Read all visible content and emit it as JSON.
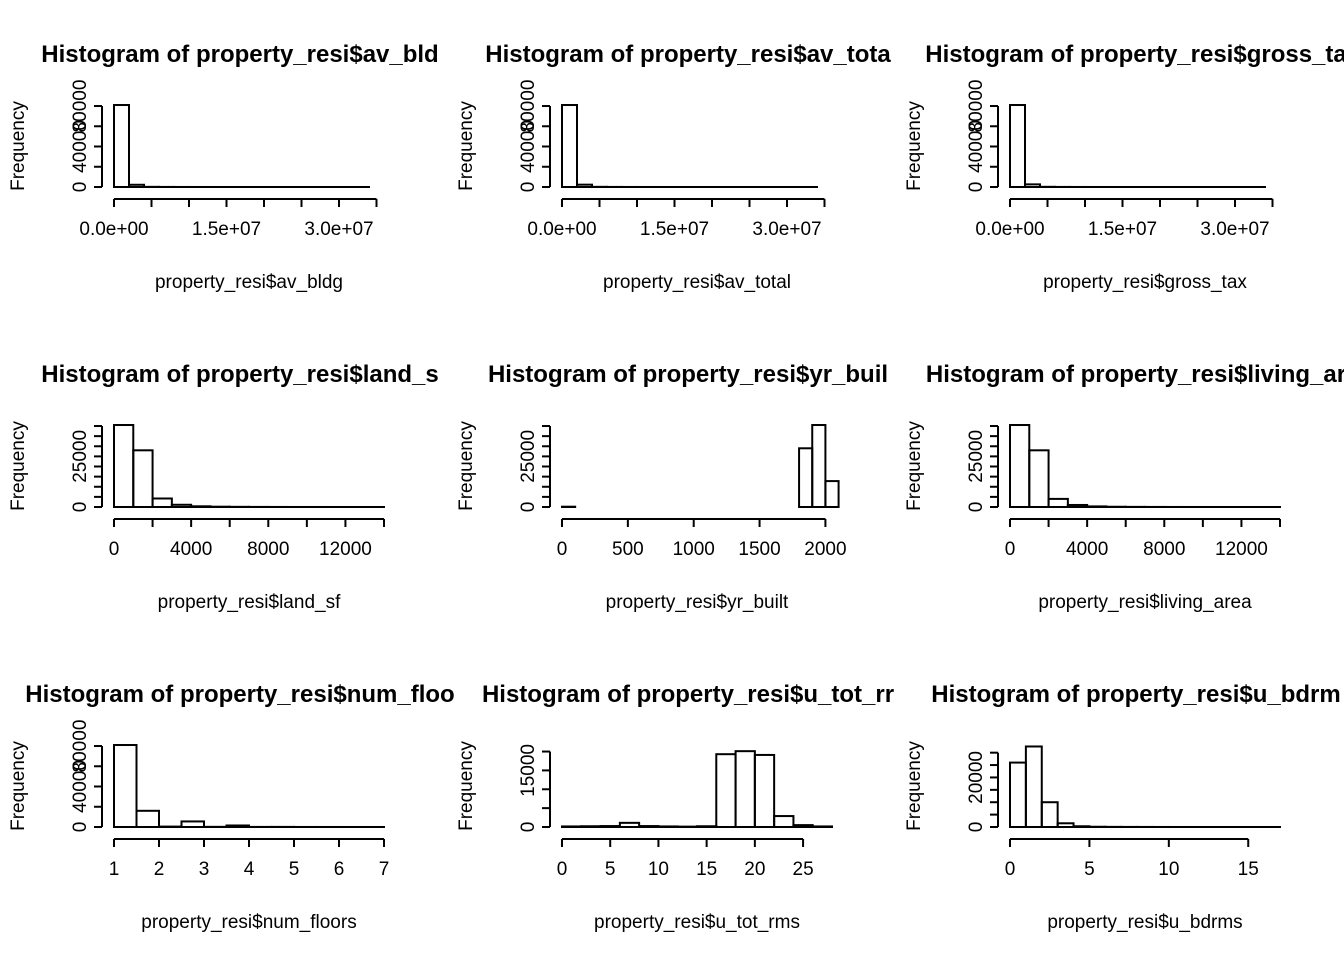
{
  "figure": {
    "rows": 3,
    "cols": 3
  },
  "chart_data": [
    {
      "type": "bar",
      "title": "Histogram of property_resi$av_bld",
      "xlabel": "property_resi$av_bldg",
      "ylabel": "Frequency",
      "xlim": [
        0,
        36000000.0
      ],
      "ylim": [
        0,
        82000
      ],
      "xticks": [
        0,
        5000000.0,
        10000000.0,
        15000000.0,
        20000000.0,
        25000000.0,
        30000000.0,
        35000000.0
      ],
      "xtick_labels": [
        "0.0e+00",
        "",
        "",
        "1.5e+07",
        "",
        "",
        "3.0e+07",
        ""
      ],
      "yticks": [
        0,
        20000,
        40000,
        60000,
        80000
      ],
      "ytick_labels": [
        "0",
        "",
        "40000",
        "",
        "80000"
      ],
      "bin_edges": [
        0,
        2000000.0,
        4000000.0,
        6000000.0,
        8000000.0,
        10000000.0,
        12000000.0,
        14000000.0,
        16000000.0,
        18000000.0,
        20000000.0,
        22000000.0,
        24000000.0,
        26000000.0,
        28000000.0,
        30000000.0,
        32000000.0,
        34000000.0
      ],
      "counts": [
        81000,
        2200,
        150,
        60,
        30,
        15,
        10,
        5,
        5,
        3,
        2,
        2,
        1,
        1,
        1,
        1,
        1
      ]
    },
    {
      "type": "bar",
      "title": "Histogram of property_resi$av_tota",
      "xlabel": "property_resi$av_total",
      "ylabel": "Frequency",
      "xlim": [
        0,
        36000000.0
      ],
      "ylim": [
        0,
        82000
      ],
      "xticks": [
        0,
        5000000.0,
        10000000.0,
        15000000.0,
        20000000.0,
        25000000.0,
        30000000.0,
        35000000.0
      ],
      "xtick_labels": [
        "0.0e+00",
        "",
        "",
        "1.5e+07",
        "",
        "",
        "3.0e+07",
        ""
      ],
      "yticks": [
        0,
        20000,
        40000,
        60000,
        80000
      ],
      "ytick_labels": [
        "0",
        "",
        "40000",
        "",
        "80000"
      ],
      "bin_edges": [
        0,
        2000000.0,
        4000000.0,
        6000000.0,
        8000000.0,
        10000000.0,
        12000000.0,
        14000000.0,
        16000000.0,
        18000000.0,
        20000000.0,
        22000000.0,
        24000000.0,
        26000000.0,
        28000000.0,
        30000000.0,
        32000000.0,
        34000000.0
      ],
      "counts": [
        81000,
        2300,
        160,
        60,
        30,
        15,
        10,
        5,
        5,
        3,
        2,
        2,
        1,
        1,
        1,
        1,
        1
      ]
    },
    {
      "type": "bar",
      "title": "Histogram of property_resi$gross_ta",
      "xlabel": "property_resi$gross_tax",
      "ylabel": "Frequency",
      "xlim": [
        0,
        36000000.0
      ],
      "ylim": [
        0,
        82000
      ],
      "xticks": [
        0,
        5000000.0,
        10000000.0,
        15000000.0,
        20000000.0,
        25000000.0,
        30000000.0,
        35000000.0
      ],
      "xtick_labels": [
        "0.0e+00",
        "",
        "",
        "1.5e+07",
        "",
        "",
        "3.0e+07",
        ""
      ],
      "yticks": [
        0,
        20000,
        40000,
        60000,
        80000
      ],
      "ytick_labels": [
        "0",
        "",
        "40000",
        "",
        "80000"
      ],
      "bin_edges": [
        0,
        2000000.0,
        4000000.0,
        6000000.0,
        8000000.0,
        10000000.0,
        12000000.0,
        14000000.0,
        16000000.0,
        18000000.0,
        20000000.0,
        22000000.0,
        24000000.0,
        26000000.0,
        28000000.0,
        30000000.0,
        32000000.0,
        34000000.0
      ],
      "counts": [
        81000,
        2600,
        180,
        60,
        30,
        15,
        10,
        5,
        5,
        3,
        2,
        2,
        1,
        1,
        1,
        1,
        1
      ]
    },
    {
      "type": "bar",
      "title": "Histogram of property_resi$land_s",
      "xlabel": "property_resi$land_sf",
      "ylabel": "Frequency",
      "xlim": [
        0,
        14000
      ],
      "ylim": [
        0,
        41000
      ],
      "xticks": [
        0,
        2000,
        4000,
        6000,
        8000,
        10000,
        12000,
        14000
      ],
      "xtick_labels": [
        "0",
        "",
        "4000",
        "",
        "8000",
        "",
        "12000",
        ""
      ],
      "yticks": [
        0,
        5000,
        10000,
        15000,
        20000,
        25000,
        30000,
        35000,
        40000
      ],
      "ytick_labels": [
        "0",
        "",
        "",
        "",
        "",
        "25000",
        "",
        "",
        ""
      ],
      "bin_edges": [
        0,
        1000,
        2000,
        3000,
        4000,
        5000,
        6000,
        7000,
        8000,
        9000,
        10000,
        11000,
        12000,
        13000,
        14000
      ],
      "counts": [
        40500,
        28000,
        4200,
        1100,
        350,
        150,
        80,
        40,
        20,
        10,
        8,
        5,
        3,
        2
      ]
    },
    {
      "type": "bar",
      "title": "Histogram of property_resi$yr_buil",
      "xlabel": "property_resi$yr_built",
      "ylabel": "Frequency",
      "xlim": [
        0,
        2050
      ],
      "ylim": [
        0,
        41000
      ],
      "xticks": [
        0,
        500,
        1000,
        1500,
        2000
      ],
      "xtick_labels": [
        "0",
        "500",
        "1000",
        "1500",
        "2000"
      ],
      "yticks": [
        0,
        5000,
        10000,
        15000,
        20000,
        25000,
        30000,
        35000,
        40000
      ],
      "ytick_labels": [
        "0",
        "",
        "",
        "",
        "",
        "25000",
        "",
        "",
        ""
      ],
      "bin_edges": [
        0,
        100,
        200,
        300,
        400,
        500,
        600,
        700,
        800,
        900,
        1000,
        1100,
        1200,
        1300,
        1400,
        1500,
        1600,
        1700,
        1800,
        1900,
        2000,
        2100
      ],
      "counts": [
        150,
        0,
        0,
        0,
        0,
        0,
        0,
        0,
        0,
        0,
        0,
        0,
        0,
        0,
        0,
        0,
        0,
        0,
        29000,
        40500,
        12800
      ]
    },
    {
      "type": "bar",
      "title": "Histogram of property_resi$living_ar",
      "xlabel": "property_resi$living_area",
      "ylabel": "Frequency",
      "xlim": [
        0,
        14000
      ],
      "ylim": [
        0,
        41000
      ],
      "xticks": [
        0,
        2000,
        4000,
        6000,
        8000,
        10000,
        12000,
        14000
      ],
      "xtick_labels": [
        "0",
        "",
        "4000",
        "",
        "8000",
        "",
        "12000",
        ""
      ],
      "yticks": [
        0,
        5000,
        10000,
        15000,
        20000,
        25000,
        30000,
        35000,
        40000
      ],
      "ytick_labels": [
        "0",
        "",
        "",
        "",
        "",
        "25000",
        "",
        "",
        ""
      ],
      "bin_edges": [
        0,
        1000,
        2000,
        3000,
        4000,
        5000,
        6000,
        7000,
        8000,
        9000,
        10000,
        11000,
        12000,
        13000,
        14000
      ],
      "counts": [
        40500,
        28000,
        4000,
        1000,
        300,
        120,
        60,
        30,
        15,
        8,
        5,
        3,
        2,
        1
      ]
    },
    {
      "type": "bar",
      "title": "Histogram of property_resi$num_floo",
      "xlabel": "property_resi$num_floors",
      "ylabel": "Frequency",
      "xlim": [
        1,
        7
      ],
      "ylim": [
        0,
        82000
      ],
      "xticks": [
        1,
        2,
        3,
        4,
        5,
        6,
        7
      ],
      "xtick_labels": [
        "1",
        "2",
        "3",
        "4",
        "5",
        "6",
        "7"
      ],
      "yticks": [
        0,
        20000,
        40000,
        60000,
        80000
      ],
      "ytick_labels": [
        "0",
        "",
        "40000",
        "",
        "80000"
      ],
      "bin_edges": [
        1,
        1.5,
        2,
        2.5,
        3,
        3.5,
        4,
        4.5,
        5,
        5.5,
        6,
        6.5,
        7
      ],
      "counts": [
        81000,
        16000,
        400,
        5500,
        150,
        1500,
        80,
        100,
        30,
        20,
        10,
        10
      ]
    },
    {
      "type": "bar",
      "title": "Histogram of property_resi$u_tot_rr",
      "xlabel": "property_resi$u_tot_rms",
      "ylabel": "Frequency",
      "xlim": [
        0,
        28
      ],
      "ylim": [
        0,
        22000
      ],
      "xticks": [
        0,
        5,
        10,
        15,
        20,
        25
      ],
      "xtick_labels": [
        "0",
        "5",
        "10",
        "15",
        "20",
        "25"
      ],
      "yticks": [
        0,
        5000,
        10000,
        15000,
        20000
      ],
      "ytick_labels": [
        "0",
        "",
        "",
        "15000",
        ""
      ],
      "bin_edges": [
        0,
        2,
        4,
        6,
        8,
        10,
        12,
        14,
        16,
        18,
        20,
        22,
        24,
        26,
        28
      ],
      "counts": [
        150,
        200,
        250,
        1100,
        250,
        150,
        100,
        200,
        19300,
        20100,
        19100,
        2900,
        500,
        150
      ]
    },
    {
      "type": "bar",
      "title": "Histogram of property_resi$u_bdrm",
      "xlabel": "property_resi$u_bdrms",
      "ylabel": "Frequency",
      "xlim": [
        0,
        17
      ],
      "ylim": [
        0,
        33500
      ],
      "xticks": [
        0,
        5,
        10,
        15
      ],
      "xtick_labels": [
        "0",
        "5",
        "10",
        "15"
      ],
      "yticks": [
        0,
        5000,
        10000,
        15000,
        20000,
        25000,
        30000
      ],
      "ytick_labels": [
        "0",
        "",
        "",
        "",
        "20000",
        "",
        ""
      ],
      "bin_edges": [
        0,
        1,
        2,
        3,
        4,
        5,
        6,
        7,
        8,
        9,
        10,
        11,
        12,
        13,
        14,
        15,
        16,
        17
      ],
      "counts": [
        26000,
        32500,
        10000,
        1500,
        300,
        100,
        50,
        30,
        20,
        10,
        5,
        5,
        3,
        2,
        1,
        1,
        1
      ]
    }
  ]
}
